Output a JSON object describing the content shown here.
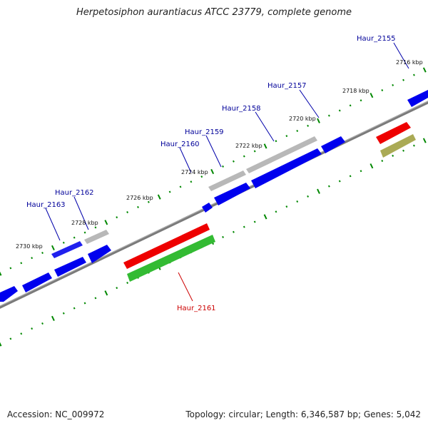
{
  "title": "Herpetosiphon aurantiacus ATCC 23779, complete genome",
  "footer": {
    "accession": "Accession: NC_009972",
    "summary": "Topology: circular; Length: 6,346,587 bp; Genes: 5,042"
  },
  "colors": {
    "forward_gene": "#0000ee",
    "pseudo_gene": "#b8b8b8",
    "rna_gene_red": "#ee0000",
    "rna_gene_green": "#33bb33",
    "olive_gene": "#aaaa55",
    "tick": "#008800",
    "backbone": "#808080",
    "label_blue": "#000099",
    "label_red": "#cc0000"
  },
  "kbp_ticks": [
    {
      "text": "2716 kbp",
      "kbp": 2716
    },
    {
      "text": "2718 kbp",
      "kbp": 2718
    },
    {
      "text": "2720 kbp",
      "kbp": 2720
    },
    {
      "text": "2722 kbp",
      "kbp": 2722
    },
    {
      "text": "2724 kbp",
      "kbp": 2724
    },
    {
      "text": "2726 kbp",
      "kbp": 2726
    },
    {
      "text": "2728 kbp",
      "kbp": 2728
    },
    {
      "text": "2730 kbp",
      "kbp": 2730
    }
  ],
  "gene_labels": [
    {
      "text": "Haur_2155",
      "color": "label_blue"
    },
    {
      "text": "Haur_2157",
      "color": "label_blue"
    },
    {
      "text": "Haur_2158",
      "color": "label_blue"
    },
    {
      "text": "Haur_2159",
      "color": "label_blue"
    },
    {
      "text": "Haur_2160",
      "color": "label_blue"
    },
    {
      "text": "Haur_2161",
      "color": "label_red"
    },
    {
      "text": "Haur_2162",
      "color": "label_blue"
    },
    {
      "text": "Haur_2163",
      "color": "label_blue"
    }
  ]
}
